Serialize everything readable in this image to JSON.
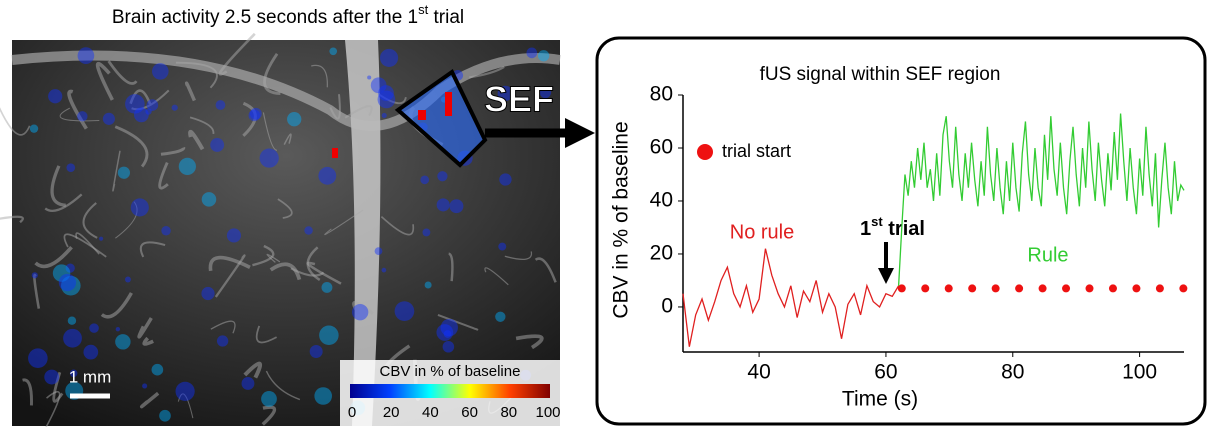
{
  "image": {
    "title_parts": [
      "Brain activity 2.5 seconds after the 1",
      "st",
      " trial"
    ],
    "region_label": "SEF",
    "scale_bar": "1 mm",
    "colorbar": {
      "label": "CBV in % of baseline",
      "ticks": [
        0,
        20,
        40,
        60,
        80,
        100
      ]
    }
  },
  "chart_data": {
    "type": "line",
    "title": "fUS signal within SEF region",
    "xlabel": "Time (s)",
    "ylabel": "CBV in % of baseline",
    "xlim": [
      28,
      107
    ],
    "ylim": [
      -17,
      80
    ],
    "xticks": [
      40,
      60,
      80,
      100
    ],
    "yticks": [
      0,
      20,
      40,
      60,
      80
    ],
    "series": [
      {
        "name": "No rule",
        "color": "#e02020",
        "x": [
          28,
          29,
          30,
          31,
          32,
          33,
          34,
          35,
          36,
          37,
          38,
          39,
          40,
          41,
          42,
          43,
          44,
          45,
          46,
          47,
          48,
          49,
          50,
          51,
          52,
          53,
          54,
          55,
          56,
          57,
          58,
          59,
          60,
          61,
          62
        ],
        "values": [
          5,
          -15,
          -3,
          3,
          -5,
          2,
          10,
          15,
          5,
          0,
          8,
          -2,
          3,
          22,
          12,
          5,
          0,
          8,
          -4,
          6,
          2,
          10,
          -2,
          5,
          0,
          -12,
          1,
          5,
          -3,
          8,
          2,
          0,
          5,
          4,
          8
        ]
      },
      {
        "name": "Rule",
        "color": "#33cc33",
        "x": [
          62,
          62.5,
          63,
          63.5,
          64,
          64.5,
          65,
          65.5,
          66,
          66.5,
          67,
          67.5,
          68,
          68.5,
          69,
          69.5,
          70,
          70.5,
          71,
          71.5,
          72,
          72.5,
          73,
          73.5,
          74,
          74.5,
          75,
          75.5,
          76,
          76.5,
          77,
          77.5,
          78,
          78.5,
          79,
          79.5,
          80,
          80.5,
          81,
          81.5,
          82,
          82.5,
          83,
          83.5,
          84,
          84.5,
          85,
          85.5,
          86,
          86.5,
          87,
          87.5,
          88,
          88.5,
          89,
          89.5,
          90,
          90.5,
          91,
          91.5,
          92,
          92.5,
          93,
          93.5,
          94,
          94.5,
          95,
          95.5,
          96,
          96.5,
          97,
          97.5,
          98,
          98.5,
          99,
          99.5,
          100,
          100.5,
          101,
          101.5,
          102,
          102.5,
          103,
          103.5,
          104,
          104.5,
          105,
          105.5,
          106,
          106.5,
          107
        ],
        "values": [
          8,
          30,
          50,
          42,
          55,
          45,
          60,
          48,
          62,
          45,
          52,
          40,
          58,
          42,
          65,
          72,
          55,
          45,
          68,
          50,
          40,
          58,
          45,
          62,
          48,
          38,
          55,
          42,
          68,
          50,
          40,
          60,
          45,
          35,
          55,
          40,
          62,
          45,
          36,
          58,
          70,
          50,
          40,
          60,
          45,
          38,
          65,
          48,
          72,
          52,
          42,
          62,
          45,
          35,
          55,
          68,
          50,
          38,
          60,
          45,
          70,
          52,
          40,
          62,
          48,
          38,
          58,
          44,
          66,
          48,
          73,
          55,
          40,
          60,
          45,
          35,
          56,
          42,
          68,
          50,
          38,
          58,
          30,
          48,
          62,
          45,
          35,
          55,
          40,
          46,
          44
        ]
      }
    ],
    "markers": {
      "name": "trial start",
      "color": "#ee1111",
      "x": [
        62.5,
        66.2,
        69.9,
        73.6,
        77.3,
        81,
        84.7,
        88.4,
        92.1,
        95.8,
        99.5,
        103.2,
        106.9
      ],
      "values": [
        7,
        7,
        7,
        7,
        7,
        7,
        7,
        7,
        7,
        7,
        7,
        7,
        7
      ]
    },
    "annotation_parts": [
      "1",
      "st",
      " trial"
    ]
  }
}
